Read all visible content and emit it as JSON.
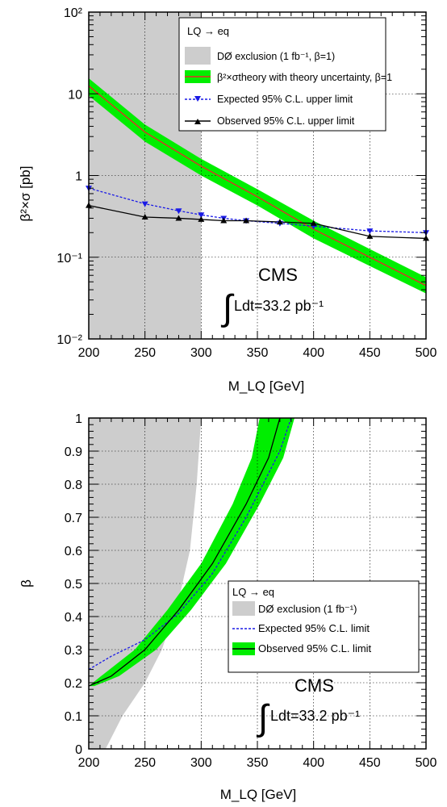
{
  "colors": {
    "excluded_region": "#cdcdcd",
    "band": "#00ee00",
    "theory_line": "#e8282a",
    "expected": "#1a1ae6",
    "observed": "#000000",
    "grid": "#000000"
  },
  "chart_data": [
    {
      "type": "line",
      "scale": "log",
      "ylabel": "β²×σ [pb]",
      "xlabel": "M_LQ [GeV]",
      "xlim": [
        200,
        500
      ],
      "ylim": [
        0.01,
        100
      ],
      "xticks": [
        "200",
        "250",
        "300",
        "350",
        "400",
        "450",
        "500"
      ],
      "yticks": [
        "10⁻²",
        "10⁻¹",
        "1",
        "10",
        "10²"
      ],
      "grid": true,
      "legend": {
        "position": "top-right",
        "title": "LQ → eq",
        "entries": [
          "DØ exclusion (1 fb⁻¹, β=1)",
          "β²×σtheory with theory uncertainty, β=1",
          "Expected 95% C.L. upper limit",
          "Observed 95% C.L. upper limit"
        ]
      },
      "annotation": {
        "experiment": "CMS",
        "lumi": "Ldt=33.2 pb⁻¹"
      },
      "excluded_region": {
        "x": [
          200,
          300
        ]
      },
      "series": [
        {
          "name": "β²×σtheory with theory uncertainty, β=1",
          "x": [
            200,
            250,
            300,
            350,
            400,
            450,
            500
          ],
          "values": [
            12.5,
            3.4,
            1.3,
            0.55,
            0.22,
            0.1,
            0.045
          ],
          "band_low": [
            9.5,
            2.6,
            1.0,
            0.43,
            0.17,
            0.078,
            0.036
          ],
          "band_high": [
            15.5,
            4.2,
            1.6,
            0.68,
            0.28,
            0.126,
            0.057
          ]
        },
        {
          "name": "Expected 95% C.L. upper limit",
          "x": [
            200,
            250,
            280,
            300,
            320,
            340,
            370,
            400,
            450,
            500
          ],
          "values": [
            0.7,
            0.45,
            0.37,
            0.33,
            0.3,
            0.28,
            0.26,
            0.24,
            0.21,
            0.2
          ]
        },
        {
          "name": "Observed 95% C.L. upper limit",
          "x": [
            200,
            250,
            280,
            300,
            320,
            340,
            370,
            400,
            450,
            500
          ],
          "values": [
            0.43,
            0.31,
            0.3,
            0.29,
            0.28,
            0.28,
            0.27,
            0.26,
            0.18,
            0.17
          ]
        }
      ]
    },
    {
      "type": "line",
      "ylabel": "β",
      "xlabel": "M_LQ [GeV]",
      "xlim": [
        200,
        500
      ],
      "ylim": [
        0,
        1
      ],
      "xticks": [
        "200",
        "250",
        "300",
        "350",
        "400",
        "450",
        "500"
      ],
      "yticks": [
        "0",
        "0.1",
        "0.2",
        "0.3",
        "0.4",
        "0.5",
        "0.6",
        "0.7",
        "0.8",
        "0.9",
        "1"
      ],
      "grid": true,
      "legend": {
        "position": "center-right",
        "title": "LQ → eq",
        "entries": [
          "DØ exclusion (1 fb⁻¹)",
          "Expected 95% C.L. limit",
          "Observed 95% C.L. limit"
        ]
      },
      "annotation": {
        "experiment": "CMS",
        "lumi": "Ldt=33.2 pb⁻¹"
      },
      "excluded_region": {
        "boundary_x": [
          215,
          230,
          250,
          265,
          280,
          290,
          296,
          300
        ],
        "boundary_y": [
          0,
          0.1,
          0.2,
          0.3,
          0.45,
          0.6,
          0.8,
          1.0
        ]
      },
      "series": [
        {
          "name": "Observed 95% C.L. limit",
          "x": [
            200,
            220,
            250,
            280,
            310,
            340,
            360,
            370
          ],
          "values": [
            0.19,
            0.22,
            0.3,
            0.42,
            0.56,
            0.74,
            0.88,
            1.0
          ],
          "band_x_minus": [
            190,
            211,
            241,
            270,
            300,
            328,
            345,
            352
          ],
          "band_x_plus": [
            205,
            227,
            260,
            291,
            322,
            352,
            373,
            383
          ]
        },
        {
          "name": "Expected 95% C.L. limit",
          "x": [
            200,
            220,
            250,
            280,
            310,
            340,
            370,
            380
          ],
          "values": [
            0.24,
            0.28,
            0.33,
            0.41,
            0.53,
            0.7,
            0.9,
            1.0
          ]
        }
      ]
    }
  ]
}
